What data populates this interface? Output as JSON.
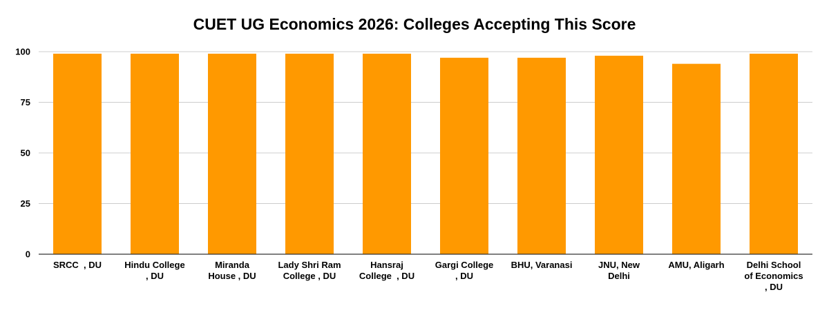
{
  "chart_data": {
    "type": "bar",
    "title": "CUET UG Economics 2026: Colleges Accepting This Score",
    "xlabel": "",
    "ylabel": "",
    "ylim": [
      0,
      100
    ],
    "yticks": [
      "0",
      "25",
      "50",
      "75",
      "100"
    ],
    "grid": true,
    "legend": "none",
    "bar_color": "#ff9900",
    "categories": [
      [
        "SRCC  , DU"
      ],
      [
        "Hindu College",
        ", DU"
      ],
      [
        "Miranda",
        "House , DU"
      ],
      [
        "Lady Shri Ram",
        "College , DU"
      ],
      [
        "Hansraj",
        "College  , DU"
      ],
      [
        "Gargi College",
        ", DU"
      ],
      [
        "BHU, Varanasi"
      ],
      [
        "JNU, New",
        "Delhi"
      ],
      [
        "AMU, Aligarh"
      ],
      [
        "Delhi School",
        "of Economics",
        ", DU"
      ]
    ],
    "values": [
      99,
      99,
      99,
      99,
      99,
      97,
      97,
      98,
      94,
      99
    ]
  }
}
